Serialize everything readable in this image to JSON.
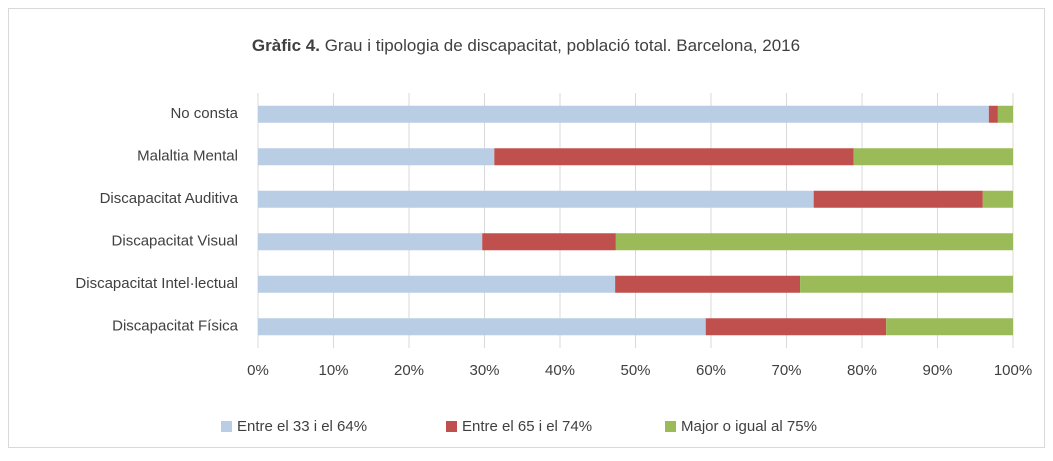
{
  "chart_data": {
    "type": "stacked_barh",
    "title_label": "Gràfic 4.",
    "title": "Grau i tipologia de discapacitat, població total. Barcelona, 2016",
    "categories": [
      "No consta",
      "Malaltia Mental",
      "Discapacitat Auditiva",
      "Discapacitat Visual",
      "Discapacitat Intel·lectual",
      "Discapacitat Física"
    ],
    "series": [
      {
        "name": "Entre el 33 i el 64%",
        "color": "#b9cde5",
        "values": [
          96.8,
          31.3,
          73.6,
          29.7,
          47.3,
          59.3
        ]
      },
      {
        "name": "Entre el 65 i el 74%",
        "color": "#c0504d",
        "values": [
          1.2,
          47.6,
          22.4,
          17.7,
          24.5,
          23.9
        ]
      },
      {
        "name": "Major o igual al 75%",
        "color": "#9bbb59",
        "values": [
          2.0,
          21.1,
          4.0,
          52.6,
          28.2,
          16.8
        ]
      }
    ],
    "xlim": [
      0,
      100
    ],
    "xticks": [
      {
        "value": 0,
        "label": "0%"
      },
      {
        "value": 10,
        "label": "10%"
      },
      {
        "value": 20,
        "label": "20%"
      },
      {
        "value": 30,
        "label": "30%"
      },
      {
        "value": 40,
        "label": "40%"
      },
      {
        "value": 50,
        "label": "50%"
      },
      {
        "value": 60,
        "label": "60%"
      },
      {
        "value": 70,
        "label": "70%"
      },
      {
        "value": 80,
        "label": "80%"
      },
      {
        "value": 90,
        "label": "90%"
      },
      {
        "value": 100,
        "label": "100%"
      }
    ],
    "grid": true,
    "legend": "bottom"
  }
}
